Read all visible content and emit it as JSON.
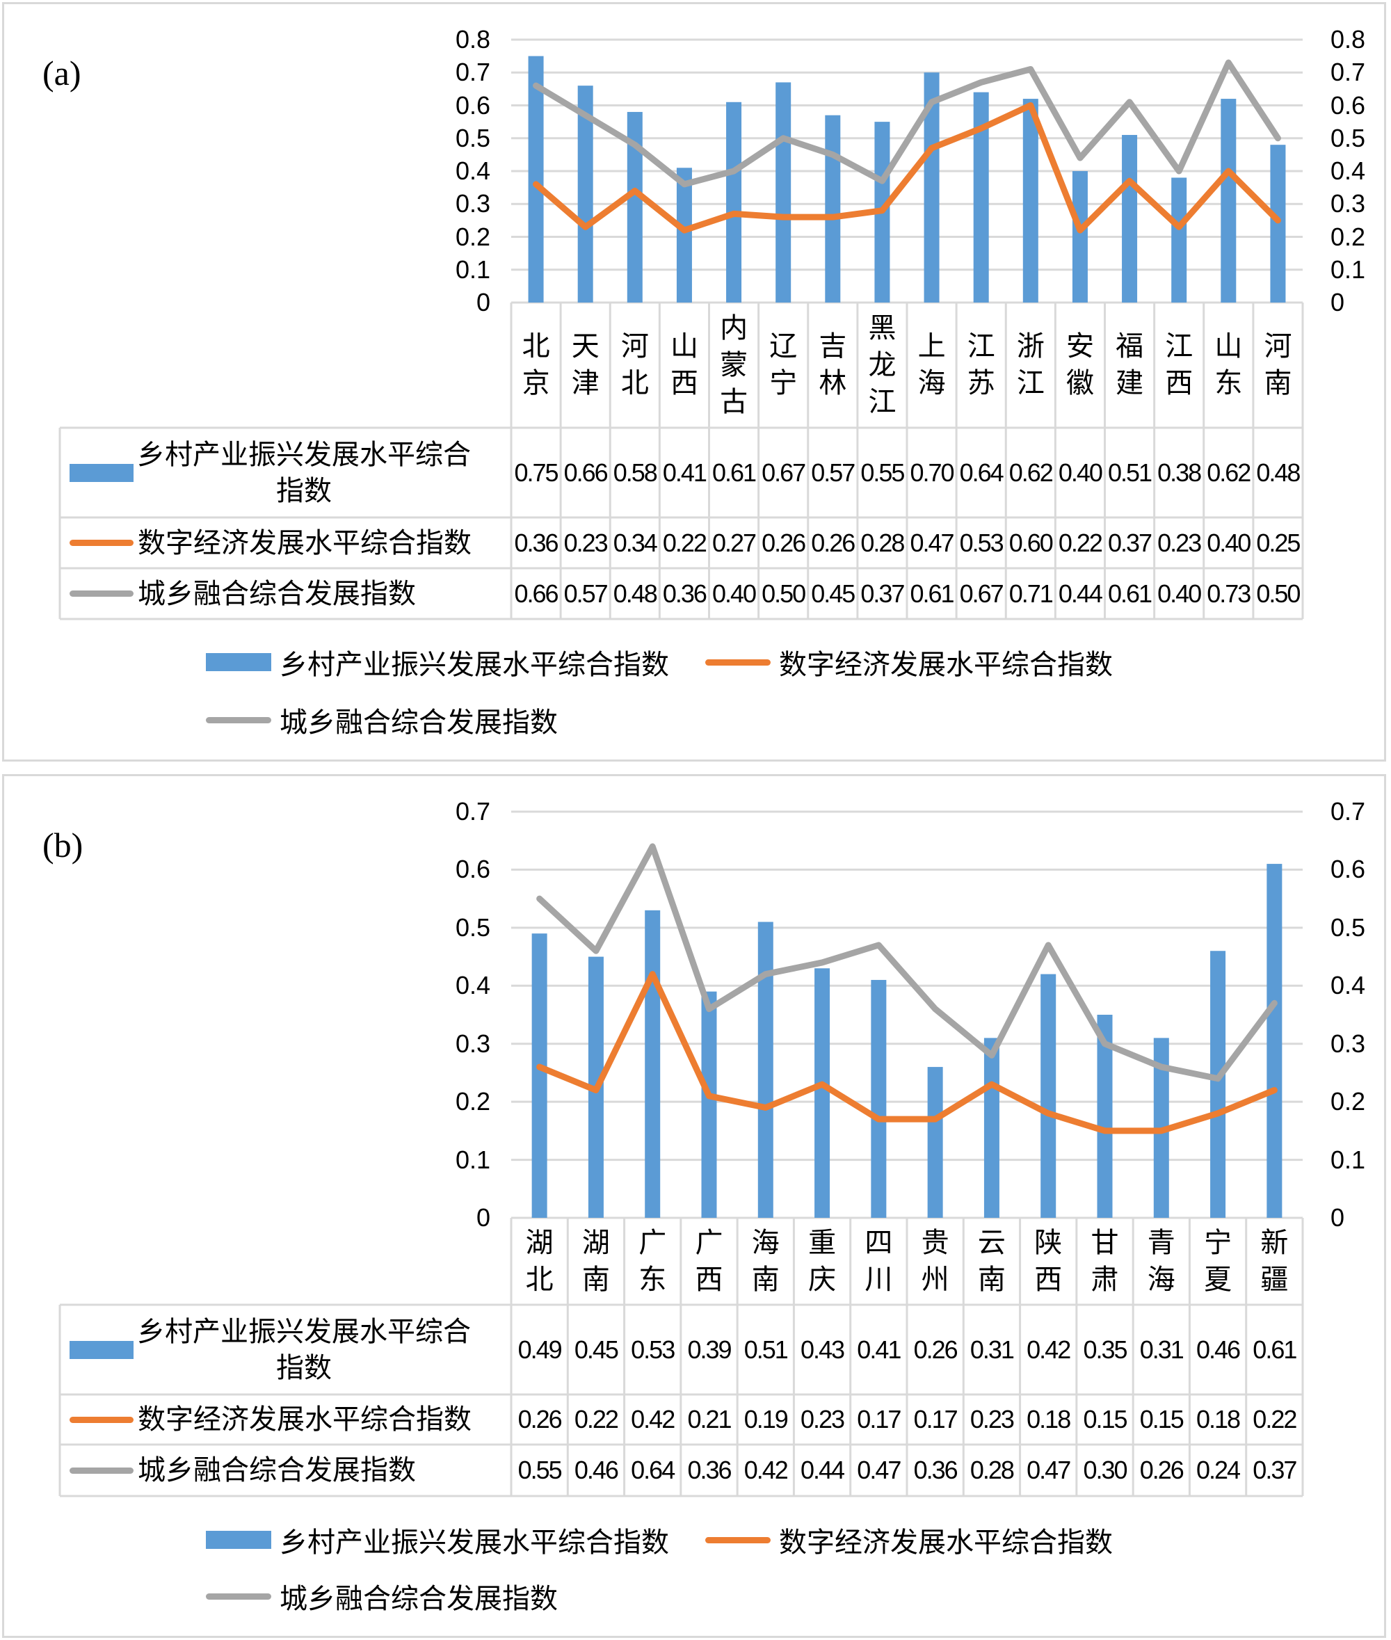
{
  "chart_data": [
    {
      "type": "bar+line",
      "panel_label": "(a)",
      "categories": [
        "北京",
        "天津",
        "河北",
        "山西",
        "内蒙古",
        "辽宁",
        "吉林",
        "黑龙江",
        "上海",
        "江苏",
        "浙江",
        "安徽",
        "福建",
        "江西",
        "山东",
        "河南"
      ],
      "series": [
        {
          "name": "乡村产业振兴发展水平综合指数",
          "type": "bar",
          "color": "#5B9BD5",
          "values": [
            0.75,
            0.66,
            0.58,
            0.41,
            0.61,
            0.67,
            0.57,
            0.55,
            0.7,
            0.64,
            0.62,
            0.4,
            0.51,
            0.38,
            0.62,
            0.48
          ]
        },
        {
          "name": "数字经济发展水平综合指数",
          "type": "line",
          "color": "#ED7D31",
          "values": [
            0.36,
            0.23,
            0.34,
            0.22,
            0.27,
            0.26,
            0.26,
            0.28,
            0.47,
            0.53,
            0.6,
            0.22,
            0.37,
            0.23,
            0.4,
            0.25
          ]
        },
        {
          "name": "城乡融合综合发展指数",
          "type": "line",
          "color": "#A5A5A5",
          "values": [
            0.66,
            0.57,
            0.48,
            0.36,
            0.4,
            0.5,
            0.45,
            0.37,
            0.61,
            0.67,
            0.71,
            0.44,
            0.61,
            0.4,
            0.73,
            0.5
          ]
        }
      ],
      "ylim": [
        0,
        0.8
      ],
      "yticks": [
        "0",
        "0.1",
        "0.2",
        "0.3",
        "0.4",
        "0.5",
        "0.6",
        "0.7",
        "0.8"
      ],
      "grid": true,
      "data_table": true,
      "legend": "bottom"
    },
    {
      "type": "bar+line",
      "panel_label": "(b)",
      "categories": [
        "湖北",
        "湖南",
        "广东",
        "广西",
        "海南",
        "重庆",
        "四川",
        "贵州",
        "云南",
        "陕西",
        "甘肃",
        "青海",
        "宁夏",
        "新疆"
      ],
      "series": [
        {
          "name": "乡村产业振兴发展水平综合指数",
          "type": "bar",
          "color": "#5B9BD5",
          "values": [
            0.49,
            0.45,
            0.53,
            0.39,
            0.51,
            0.43,
            0.41,
            0.26,
            0.31,
            0.42,
            0.35,
            0.31,
            0.46,
            0.61
          ]
        },
        {
          "name": "数字经济发展水平综合指数",
          "type": "line",
          "color": "#ED7D31",
          "values": [
            0.26,
            0.22,
            0.42,
            0.21,
            0.19,
            0.23,
            0.17,
            0.17,
            0.23,
            0.18,
            0.15,
            0.15,
            0.18,
            0.22
          ]
        },
        {
          "name": "城乡融合综合发展指数",
          "type": "line",
          "color": "#A5A5A5",
          "values": [
            0.55,
            0.46,
            0.64,
            0.36,
            0.42,
            0.44,
            0.47,
            0.36,
            0.28,
            0.47,
            0.3,
            0.26,
            0.24,
            0.37
          ]
        }
      ],
      "ylim": [
        0,
        0.7
      ],
      "yticks": [
        "0",
        "0.1",
        "0.2",
        "0.3",
        "0.4",
        "0.5",
        "0.6",
        "0.7"
      ],
      "grid": true,
      "data_table": true,
      "legend": "bottom"
    }
  ]
}
